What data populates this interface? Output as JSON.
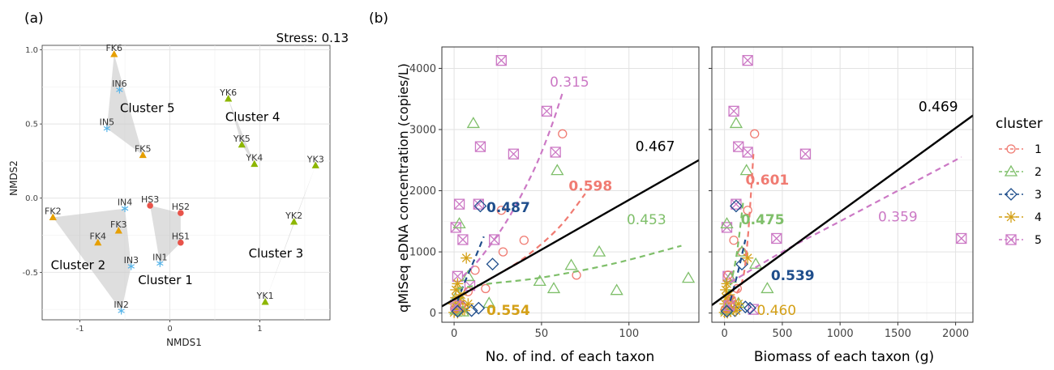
{
  "panel_a": {
    "label": "(a)",
    "stress_text": "Stress: 0.13",
    "xlabel": "NMDS1",
    "ylabel": "NMDS2",
    "xlim": [
      -1.42,
      1.78
    ],
    "ylim": [
      -0.82,
      1.03
    ],
    "xticks": [
      -1,
      0,
      1
    ],
    "xtick_labels": [
      "-1",
      "0",
      "1"
    ],
    "yticks": [
      -0.5,
      0.0,
      0.5,
      1.0
    ],
    "ytick_labels": [
      "-0.5",
      "0.0",
      "0.5",
      "1.0"
    ],
    "colors": {
      "FK": "#E69F00",
      "IN": "#56B4E9",
      "HS": "#E8534A",
      "YK": "#8DB600"
    },
    "points": [
      {
        "label": "FK6",
        "x": -0.62,
        "y": 0.97,
        "group": "FK"
      },
      {
        "label": "IN6",
        "x": -0.56,
        "y": 0.73,
        "group": "IN"
      },
      {
        "label": "IN5",
        "x": -0.7,
        "y": 0.47,
        "group": "IN"
      },
      {
        "label": "FK5",
        "x": -0.3,
        "y": 0.29,
        "group": "FK"
      },
      {
        "label": "FK2",
        "x": -1.3,
        "y": -0.13,
        "group": "FK"
      },
      {
        "label": "FK4",
        "x": -0.8,
        "y": -0.3,
        "group": "FK"
      },
      {
        "label": "FK3",
        "x": -0.57,
        "y": -0.22,
        "group": "FK"
      },
      {
        "label": "IN4",
        "x": -0.5,
        "y": -0.07,
        "group": "IN"
      },
      {
        "label": "IN3",
        "x": -0.43,
        "y": -0.46,
        "group": "IN"
      },
      {
        "label": "IN2",
        "x": -0.54,
        "y": -0.76,
        "group": "IN"
      },
      {
        "label": "IN1",
        "x": -0.11,
        "y": -0.44,
        "group": "IN"
      },
      {
        "label": "HS3",
        "x": -0.22,
        "y": -0.05,
        "group": "HS"
      },
      {
        "label": "HS2",
        "x": 0.12,
        "y": -0.1,
        "group": "HS"
      },
      {
        "label": "HS1",
        "x": 0.12,
        "y": -0.3,
        "group": "HS"
      },
      {
        "label": "YK6",
        "x": 0.65,
        "y": 0.67,
        "group": "YK"
      },
      {
        "label": "YK5",
        "x": 0.8,
        "y": 0.36,
        "group": "YK"
      },
      {
        "label": "YK4",
        "x": 0.94,
        "y": 0.23,
        "group": "YK"
      },
      {
        "label": "YK3",
        "x": 1.62,
        "y": 0.22,
        "group": "YK"
      },
      {
        "label": "YK2",
        "x": 1.38,
        "y": -0.16,
        "group": "YK"
      },
      {
        "label": "YK1",
        "x": 1.06,
        "y": -0.7,
        "group": "YK"
      }
    ],
    "hulls": [
      {
        "name": "Cluster 5",
        "points": [
          [
            -0.62,
            0.97
          ],
          [
            -0.3,
            0.29
          ],
          [
            -0.7,
            0.47
          ]
        ]
      },
      {
        "name": "Cluster 4",
        "points": [
          [
            0.65,
            0.67
          ],
          [
            0.94,
            0.23
          ],
          [
            0.8,
            0.36
          ]
        ]
      },
      {
        "name": "Cluster 3",
        "points": [
          [
            1.62,
            0.22
          ],
          [
            1.06,
            -0.7
          ],
          [
            1.38,
            -0.16
          ]
        ]
      },
      {
        "name": "Cluster 2",
        "points": [
          [
            -1.3,
            -0.13
          ],
          [
            -0.5,
            -0.07
          ],
          [
            -0.43,
            -0.46
          ],
          [
            -0.54,
            -0.76
          ]
        ]
      },
      {
        "name": "Cluster 1",
        "points": [
          [
            -0.22,
            -0.05
          ],
          [
            0.12,
            -0.1
          ],
          [
            0.12,
            -0.3
          ],
          [
            -0.11,
            -0.44
          ]
        ]
      }
    ],
    "cluster_labels": [
      {
        "text": "Cluster 5",
        "x": -0.25,
        "y": 0.58
      },
      {
        "text": "Cluster 4",
        "x": 0.92,
        "y": 0.52
      },
      {
        "text": "Cluster 3",
        "x": 1.18,
        "y": -0.4
      },
      {
        "text": "Cluster 2",
        "x": -1.02,
        "y": -0.48
      },
      {
        "text": "Cluster 1",
        "x": -0.05,
        "y": -0.58
      }
    ]
  },
  "panel_b": {
    "label": "(b)",
    "ylabel": "qMiSeq eDNA concentration (copies/L)",
    "ylim": [
      -150,
      4350
    ],
    "yticks": [
      0,
      1000,
      2000,
      3000,
      4000
    ],
    "ytick_labels": [
      "0",
      "1000",
      "2000",
      "3000",
      "4000"
    ],
    "legend": {
      "title": "cluster",
      "entries": [
        {
          "label": "1",
          "shape": "circle",
          "color": "#F07B72"
        },
        {
          "label": "2",
          "shape": "triangle",
          "color": "#7FBF6A"
        },
        {
          "label": "3",
          "shape": "diamond",
          "color": "#1F4E8C"
        },
        {
          "label": "4",
          "shape": "asterisk",
          "color": "#D4A017"
        },
        {
          "label": "5",
          "shape": "boxx",
          "color": "#CC79C5"
        }
      ]
    },
    "left": {
      "xlabel": "No. of ind. of each taxon",
      "xlim": [
        -7,
        140
      ],
      "xticks": [
        0,
        50,
        100
      ],
      "xtick_labels": [
        "0",
        "50",
        "100"
      ],
      "overall_line": {
        "x": [
          -7,
          140
        ],
        "y": [
          110,
          2500
        ]
      },
      "overall_label": "0.467",
      "curves": [
        {
          "cluster": "5",
          "color": "#CC79C5",
          "x": [
            5,
            15,
            30,
            45,
            55,
            62
          ],
          "y": [
            600,
            900,
            1500,
            2300,
            3000,
            3600
          ]
        },
        {
          "cluster": "1",
          "color": "#F07B72",
          "x": [
            5,
            20,
            40,
            60,
            75
          ],
          "y": [
            300,
            550,
            900,
            1400,
            1950
          ]
        },
        {
          "cluster": "3",
          "color": "#1F4E8C",
          "x": [
            2,
            6,
            12,
            17
          ],
          "y": [
            200,
            500,
            900,
            1250
          ]
        },
        {
          "cluster": "2",
          "color": "#7FBF6A",
          "x": [
            2,
            20,
            50,
            90,
            130
          ],
          "y": [
            400,
            480,
            580,
            800,
            1100
          ]
        }
      ],
      "r_labels": [
        {
          "text": "0.315",
          "x": 66,
          "y": 3700,
          "color": "#CC79C5",
          "bold": false
        },
        {
          "text": "0.598",
          "x": 78,
          "y": 2000,
          "color": "#F07B72",
          "bold": true
        },
        {
          "text": "0.487",
          "x": 31,
          "y": 1650,
          "color": "#1F4E8C",
          "bold": true
        },
        {
          "text": "0.453",
          "x": 110,
          "y": 1450,
          "color": "#7FBF6A",
          "bold": false
        },
        {
          "text": "0.554",
          "x": 31,
          "y": -30,
          "color": "#D4A017",
          "bold": true
        },
        {
          "text": "0.467",
          "x": 115,
          "y": 2650,
          "color": "#000000",
          "bold": false
        }
      ],
      "points": [
        {
          "c": "5",
          "x": 27,
          "y": 4130
        },
        {
          "c": "5",
          "x": 53,
          "y": 3300
        },
        {
          "c": "5",
          "x": 15,
          "y": 2720
        },
        {
          "c": "5",
          "x": 34,
          "y": 2600
        },
        {
          "c": "5",
          "x": 58,
          "y": 2630
        },
        {
          "c": "5",
          "x": 14,
          "y": 1780
        },
        {
          "c": "5",
          "x": 3,
          "y": 1780
        },
        {
          "c": "5",
          "x": 1,
          "y": 1400
        },
        {
          "c": "5",
          "x": 5,
          "y": 1200
        },
        {
          "c": "5",
          "x": 23,
          "y": 1200
        },
        {
          "c": "5",
          "x": 2,
          "y": 600
        },
        {
          "c": "5",
          "x": 9,
          "y": 450
        },
        {
          "c": "1",
          "x": 62,
          "y": 2930
        },
        {
          "c": "1",
          "x": 27,
          "y": 1680
        },
        {
          "c": "1",
          "x": 40,
          "y": 1190
        },
        {
          "c": "1",
          "x": 28,
          "y": 1000
        },
        {
          "c": "1",
          "x": 70,
          "y": 620
        },
        {
          "c": "1",
          "x": 18,
          "y": 400
        },
        {
          "c": "1",
          "x": 8,
          "y": 350
        },
        {
          "c": "1",
          "x": 3,
          "y": 200
        },
        {
          "c": "1",
          "x": 12,
          "y": 700
        },
        {
          "c": "2",
          "x": 11,
          "y": 3100
        },
        {
          "c": "2",
          "x": 59,
          "y": 2330
        },
        {
          "c": "2",
          "x": 3,
          "y": 1460
        },
        {
          "c": "2",
          "x": 83,
          "y": 1000
        },
        {
          "c": "2",
          "x": 67,
          "y": 780
        },
        {
          "c": "2",
          "x": 49,
          "y": 520
        },
        {
          "c": "2",
          "x": 57,
          "y": 400
        },
        {
          "c": "2",
          "x": 93,
          "y": 370
        },
        {
          "c": "2",
          "x": 134,
          "y": 570
        },
        {
          "c": "2",
          "x": 8,
          "y": 600
        },
        {
          "c": "2",
          "x": 20,
          "y": 160
        },
        {
          "c": "2",
          "x": 2,
          "y": 300
        },
        {
          "c": "3",
          "x": 15,
          "y": 1750
        },
        {
          "c": "3",
          "x": 22,
          "y": 800
        },
        {
          "c": "3",
          "x": 5,
          "y": 100
        },
        {
          "c": "3",
          "x": 10,
          "y": 40
        },
        {
          "c": "3",
          "x": 14,
          "y": 80
        },
        {
          "c": "4",
          "x": 7,
          "y": 900
        },
        {
          "c": "4",
          "x": 2,
          "y": 480
        },
        {
          "c": "4",
          "x": 1,
          "y": 380
        },
        {
          "c": "4",
          "x": 4,
          "y": 300
        },
        {
          "c": "4",
          "x": 1,
          "y": 250
        },
        {
          "c": "4",
          "x": 3,
          "y": 200
        },
        {
          "c": "4",
          "x": 0,
          "y": 150
        },
        {
          "c": "4",
          "x": 2,
          "y": 100
        },
        {
          "c": "4",
          "x": 5,
          "y": 80
        },
        {
          "c": "4",
          "x": 1,
          "y": 50
        },
        {
          "c": "4",
          "x": 3,
          "y": 30
        },
        {
          "c": "4",
          "x": 6,
          "y": 40
        },
        {
          "c": "4",
          "x": 0,
          "y": 10
        },
        {
          "c": "4",
          "x": 2,
          "y": 5
        },
        {
          "c": "4",
          "x": 8,
          "y": 150
        },
        {
          "c": "1",
          "x": 1,
          "y": 60
        },
        {
          "c": "1",
          "x": 4,
          "y": 120
        },
        {
          "c": "2",
          "x": 1,
          "y": 50
        },
        {
          "c": "2",
          "x": 5,
          "y": 20
        },
        {
          "c": "5",
          "x": 1,
          "y": 120
        },
        {
          "c": "3",
          "x": 2,
          "y": 30
        }
      ]
    },
    "right": {
      "xlabel": "Biomass of each taxon (g)",
      "xlim": [
        -110,
        2150
      ],
      "xticks": [
        0,
        500,
        1000,
        1500,
        2000
      ],
      "xtick_labels": [
        "0",
        "500",
        "1000",
        "1500",
        "2000"
      ],
      "overall_line": {
        "x": [
          -110,
          2150
        ],
        "y": [
          130,
          3230
        ]
      },
      "overall_label": "0.469",
      "curves": [
        {
          "cluster": "1",
          "color": "#F07B72",
          "x": [
            50,
            150,
            200,
            250
          ],
          "y": [
            200,
            500,
            1200,
            2600
          ]
        },
        {
          "cluster": "2",
          "color": "#7FBF6A",
          "x": [
            30,
            100,
            160
          ],
          "y": [
            300,
            900,
            1800
          ]
        },
        {
          "cluster": "3",
          "color": "#1F4E8C",
          "x": [
            50,
            120,
            180
          ],
          "y": [
            200,
            700,
            1200
          ]
        },
        {
          "cluster": "5",
          "color": "#CC79C5",
          "x": [
            50,
            500,
            1000,
            1500,
            2050
          ],
          "y": [
            500,
            1000,
            1500,
            2000,
            2550
          ]
        }
      ],
      "r_labels": [
        {
          "text": "0.601",
          "x": 370,
          "y": 2100,
          "color": "#F07B72",
          "bold": true
        },
        {
          "text": "0.475",
          "x": 330,
          "y": 1450,
          "color": "#7FBF6A",
          "bold": true
        },
        {
          "text": "0.359",
          "x": 1500,
          "y": 1500,
          "color": "#CC79C5",
          "bold": false
        },
        {
          "text": "0.539",
          "x": 590,
          "y": 540,
          "color": "#1F4E8C",
          "bold": true
        },
        {
          "text": "0.460",
          "x": 450,
          "y": -30,
          "color": "#D4A017",
          "bold": false
        },
        {
          "text": "0.469",
          "x": 1850,
          "y": 3300,
          "color": "#000000",
          "bold": false
        }
      ],
      "points": [
        {
          "c": "5",
          "x": 200,
          "y": 4130
        },
        {
          "c": "5",
          "x": 80,
          "y": 3300
        },
        {
          "c": "5",
          "x": 120,
          "y": 2720
        },
        {
          "c": "5",
          "x": 700,
          "y": 2600
        },
        {
          "c": "5",
          "x": 200,
          "y": 2630
        },
        {
          "c": "5",
          "x": 100,
          "y": 1780
        },
        {
          "c": "5",
          "x": 20,
          "y": 1400
        },
        {
          "c": "5",
          "x": 2050,
          "y": 1220
        },
        {
          "c": "5",
          "x": 450,
          "y": 1220
        },
        {
          "c": "5",
          "x": 250,
          "y": 60
        },
        {
          "c": "5",
          "x": 30,
          "y": 600
        },
        {
          "c": "1",
          "x": 260,
          "y": 2930
        },
        {
          "c": "1",
          "x": 200,
          "y": 1680
        },
        {
          "c": "1",
          "x": 80,
          "y": 1190
        },
        {
          "c": "1",
          "x": 150,
          "y": 1000
        },
        {
          "c": "1",
          "x": 30,
          "y": 620
        },
        {
          "c": "1",
          "x": 110,
          "y": 400
        },
        {
          "c": "2",
          "x": 100,
          "y": 3100
        },
        {
          "c": "2",
          "x": 190,
          "y": 2330
        },
        {
          "c": "2",
          "x": 20,
          "y": 1460
        },
        {
          "c": "2",
          "x": 150,
          "y": 1000
        },
        {
          "c": "2",
          "x": 270,
          "y": 800
        },
        {
          "c": "2",
          "x": 370,
          "y": 400
        },
        {
          "c": "2",
          "x": 50,
          "y": 570
        },
        {
          "c": "2",
          "x": 120,
          "y": 160
        },
        {
          "c": "3",
          "x": 100,
          "y": 1750
        },
        {
          "c": "3",
          "x": 150,
          "y": 800
        },
        {
          "c": "3",
          "x": 180,
          "y": 100
        },
        {
          "c": "3",
          "x": 220,
          "y": 80
        },
        {
          "c": "3",
          "x": 90,
          "y": 40
        },
        {
          "c": "4",
          "x": 200,
          "y": 900
        },
        {
          "c": "4",
          "x": 20,
          "y": 480
        },
        {
          "c": "4",
          "x": 10,
          "y": 380
        },
        {
          "c": "4",
          "x": 40,
          "y": 300
        },
        {
          "c": "4",
          "x": 15,
          "y": 250
        },
        {
          "c": "4",
          "x": 60,
          "y": 200
        },
        {
          "c": "4",
          "x": 5,
          "y": 150
        },
        {
          "c": "4",
          "x": 30,
          "y": 100
        },
        {
          "c": "4",
          "x": 80,
          "y": 80
        },
        {
          "c": "4",
          "x": 10,
          "y": 50
        },
        {
          "c": "4",
          "x": 50,
          "y": 30
        },
        {
          "c": "4",
          "x": 100,
          "y": 40
        },
        {
          "c": "4",
          "x": 0,
          "y": 10
        },
        {
          "c": "4",
          "x": 25,
          "y": 5
        },
        {
          "c": "4",
          "x": 120,
          "y": 150
        },
        {
          "c": "1",
          "x": 10,
          "y": 60
        },
        {
          "c": "2",
          "x": 15,
          "y": 50
        },
        {
          "c": "5",
          "x": 40,
          "y": 120
        },
        {
          "c": "3",
          "x": 20,
          "y": 30
        },
        {
          "c": "1",
          "x": 60,
          "y": 220
        }
      ]
    }
  },
  "chart_data": [
    {
      "type": "scatter",
      "xlabel": "NMDS1",
      "ylabel": "NMDS2",
      "xlim": [
        -1.42,
        1.78
      ],
      "ylim": [
        -0.82,
        1.03
      ],
      "annotation": "Stress: 0.13"
    },
    {
      "type": "scatter",
      "xlabel": "No. of ind. of each taxon",
      "ylabel": "qMiSeq eDNA concentration (copies/L)",
      "xlim": [
        -7,
        140
      ],
      "ylim": [
        -150,
        4350
      ]
    },
    {
      "type": "scatter",
      "xlabel": "Biomass of each taxon (g)",
      "ylabel": "qMiSeq eDNA concentration (copies/L)",
      "xlim": [
        -110,
        2150
      ],
      "ylim": [
        -150,
        4350
      ]
    }
  ]
}
